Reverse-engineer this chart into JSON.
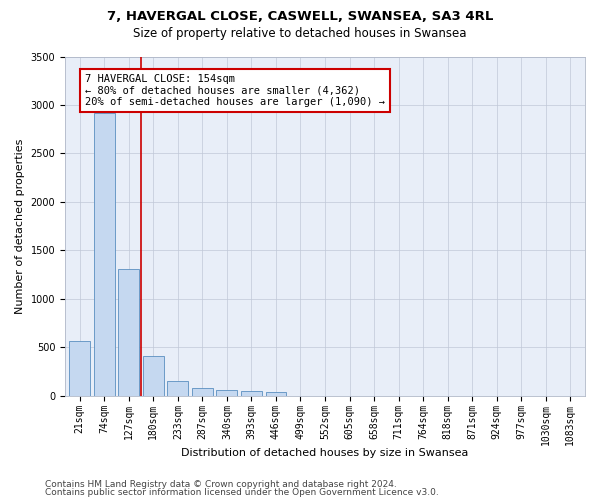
{
  "title1": "7, HAVERGAL CLOSE, CASWELL, SWANSEA, SA3 4RL",
  "title2": "Size of property relative to detached houses in Swansea",
  "xlabel": "Distribution of detached houses by size in Swansea",
  "ylabel": "Number of detached properties",
  "categories": [
    "21sqm",
    "74sqm",
    "127sqm",
    "180sqm",
    "233sqm",
    "287sqm",
    "340sqm",
    "393sqm",
    "446sqm",
    "499sqm",
    "552sqm",
    "605sqm",
    "658sqm",
    "711sqm",
    "764sqm",
    "818sqm",
    "871sqm",
    "924sqm",
    "977sqm",
    "1030sqm",
    "1083sqm"
  ],
  "values": [
    570,
    2920,
    1310,
    415,
    155,
    80,
    60,
    50,
    40,
    0,
    0,
    0,
    0,
    0,
    0,
    0,
    0,
    0,
    0,
    0,
    0
  ],
  "bar_color": "#c5d8f0",
  "bar_edge_color": "#5a8fc0",
  "vline_x_idx": 2.5,
  "vline_color": "#cc0000",
  "annotation_text": "7 HAVERGAL CLOSE: 154sqm\n← 80% of detached houses are smaller (4,362)\n20% of semi-detached houses are larger (1,090) →",
  "annotation_box_color": "#ffffff",
  "annotation_box_edge": "#cc0000",
  "ylim": [
    0,
    3500
  ],
  "yticks": [
    0,
    500,
    1000,
    1500,
    2000,
    2500,
    3000,
    3500
  ],
  "background_color": "#e8eef8",
  "footer1": "Contains HM Land Registry data © Crown copyright and database right 2024.",
  "footer2": "Contains public sector information licensed under the Open Government Licence v3.0.",
  "title_fontsize": 9.5,
  "subtitle_fontsize": 8.5,
  "axis_label_fontsize": 8,
  "tick_fontsize": 7,
  "annotation_fontsize": 7.5,
  "footer_fontsize": 6.5
}
